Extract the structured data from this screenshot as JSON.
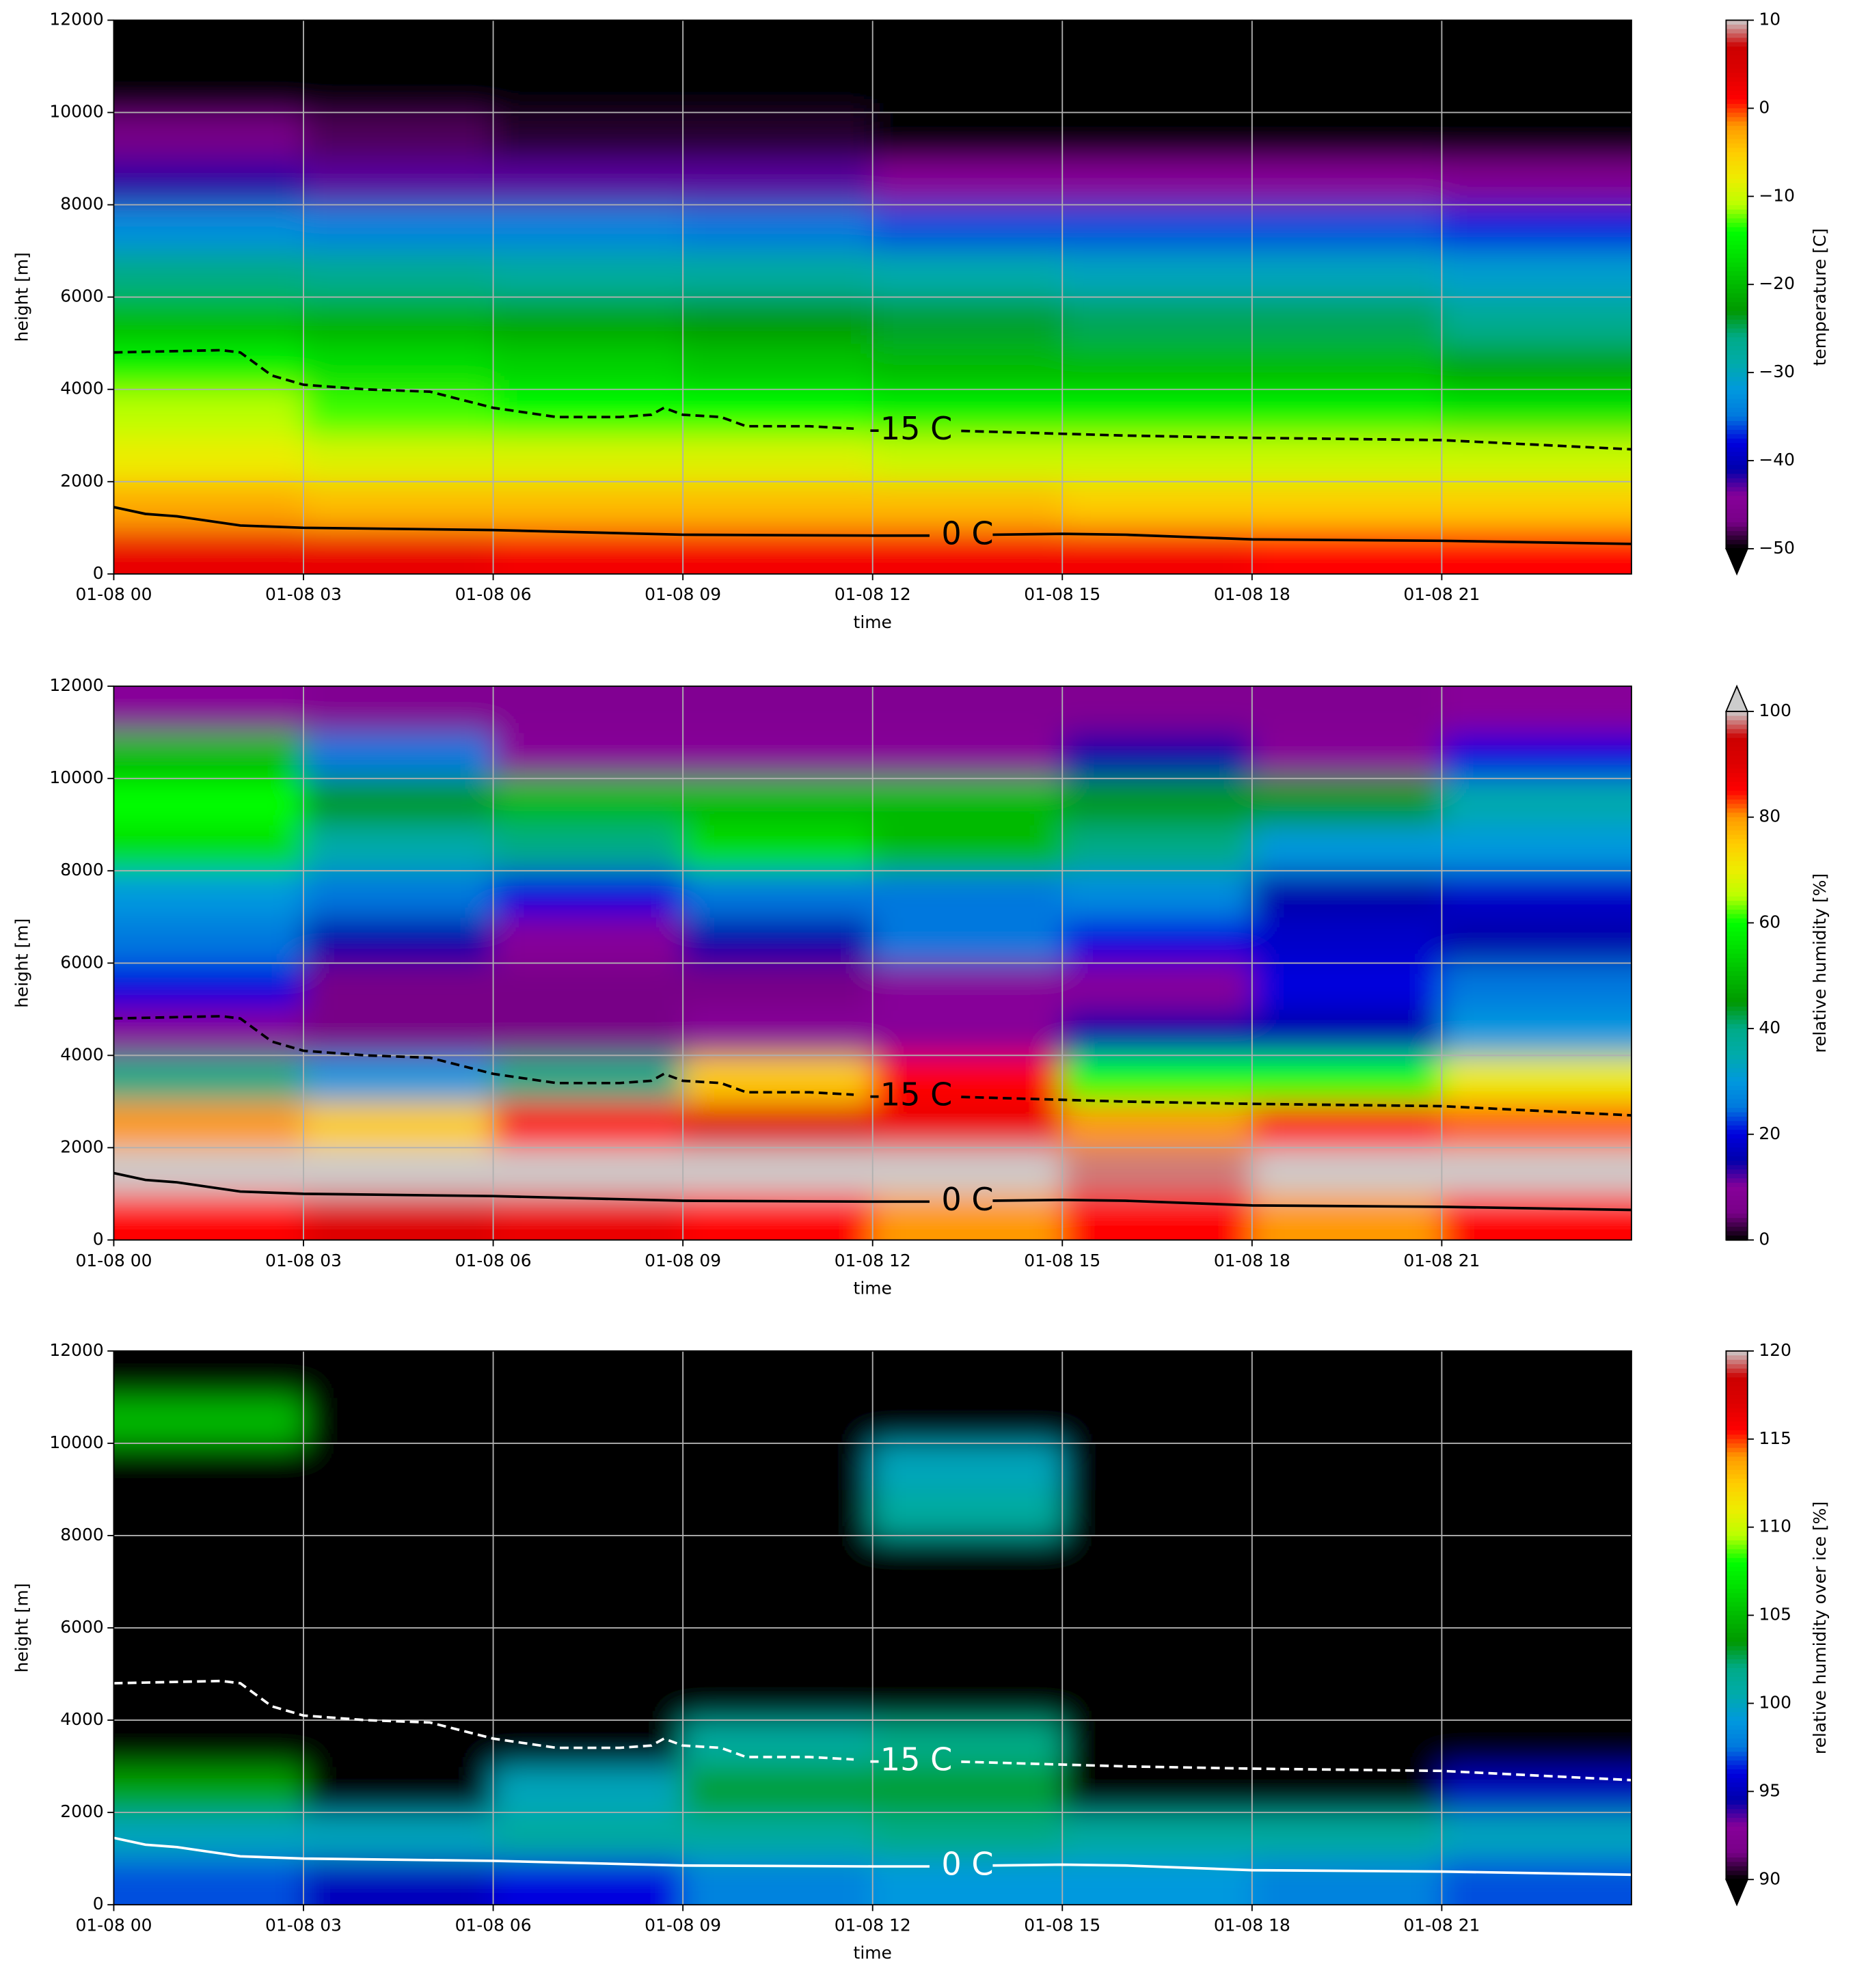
{
  "chart_data": [
    {
      "type": "heatmap",
      "xlabel": "time",
      "ylabel": "height [m]",
      "colorbar_label": "temperature [C]",
      "colormap": "nipy_spectral",
      "extend": "min",
      "contour_color": "#000000",
      "xlim": [
        0,
        24
      ],
      "xticks": [
        {
          "value": 0,
          "label": "01-08 00"
        },
        {
          "value": 3,
          "label": "01-08 03"
        },
        {
          "value": 6,
          "label": "01-08 06"
        },
        {
          "value": 9,
          "label": "01-08 09"
        },
        {
          "value": 12,
          "label": "01-08 12"
        },
        {
          "value": 15,
          "label": "01-08 15"
        },
        {
          "value": 18,
          "label": "01-08 18"
        },
        {
          "value": 21,
          "label": "01-08 21"
        }
      ],
      "ylim": [
        0,
        12000
      ],
      "yticks": [
        0,
        2000,
        4000,
        6000,
        8000,
        10000,
        12000
      ],
      "grid": true,
      "clim": [
        -50,
        10
      ],
      "cticks": [
        {
          "value": -50,
          "label": "−50"
        },
        {
          "value": -40,
          "label": "−40"
        },
        {
          "value": -30,
          "label": "−30"
        },
        {
          "value": -20,
          "label": "−20"
        },
        {
          "value": -10,
          "label": "−10"
        },
        0,
        10
      ],
      "z": [
        [
          3,
          3,
          2,
          2,
          2,
          2,
          1,
          1
        ],
        [
          -3,
          -4,
          -4,
          -4,
          -4,
          -5,
          -5,
          -5
        ],
        [
          -8,
          -9,
          -9,
          -9,
          -10,
          -10,
          -10,
          -10
        ],
        [
          -11,
          -13,
          -14,
          -14,
          -15,
          -15,
          -15,
          -16
        ],
        [
          -15,
          -17,
          -18,
          -19,
          -20,
          -20,
          -20,
          -22
        ],
        [
          -20,
          -21,
          -22,
          -23,
          -24,
          -25,
          -25,
          -27
        ],
        [
          -26,
          -27,
          -28,
          -28,
          -29,
          -30,
          -30,
          -31
        ],
        [
          -33,
          -34,
          -34,
          -35,
          -36,
          -36,
          -36,
          -37
        ],
        [
          -42,
          -43,
          -43,
          -43,
          -44,
          -44,
          -44,
          -45
        ],
        [
          -47,
          -48,
          -49,
          -49,
          -52,
          -52,
          -52,
          -53
        ],
        [
          -55,
          -55,
          -55,
          -55,
          -55,
          -55,
          -55,
          -55
        ],
        [
          -55,
          -55,
          -55,
          -55,
          -55,
          -55,
          -55,
          -55
        ]
      ],
      "contours": [
        {
          "label": "-15 C",
          "dashed": true,
          "label_x": 12.6,
          "label_y": 3100,
          "x": [
            0,
            1.7,
            2,
            2.5,
            3,
            4,
            5,
            6,
            7,
            8,
            8.5,
            8.7,
            9,
            9.6,
            10,
            11,
            11.7,
            12.6,
            13.4,
            16,
            18,
            21,
            24
          ],
          "y": [
            4800,
            4850,
            4800,
            4300,
            4100,
            4000,
            3950,
            3600,
            3400,
            3400,
            3450,
            3600,
            3450,
            3400,
            3200,
            3200,
            3150,
            null,
            3100,
            3000,
            2950,
            2900,
            2700
          ]
        },
        {
          "label": "0 C",
          "dashed": false,
          "label_x": 13.5,
          "label_y": 830,
          "x": [
            0,
            0.5,
            1,
            2,
            3,
            6,
            9,
            12,
            12.9,
            13.5,
            13.9,
            15,
            16,
            18,
            21,
            24
          ],
          "y": [
            1450,
            1300,
            1250,
            1050,
            1000,
            950,
            850,
            830,
            830,
            null,
            850,
            870,
            850,
            750,
            720,
            650
          ]
        }
      ]
    },
    {
      "type": "heatmap",
      "xlabel": "time",
      "ylabel": "height [m]",
      "colorbar_label": "relative humidity [%]",
      "colormap": "nipy_spectral",
      "extend": "max",
      "contour_color": "#000000",
      "xlim": [
        0,
        24
      ],
      "xticks": [
        {
          "value": 0,
          "label": "01-08 00"
        },
        {
          "value": 3,
          "label": "01-08 03"
        },
        {
          "value": 6,
          "label": "01-08 06"
        },
        {
          "value": 9,
          "label": "01-08 09"
        },
        {
          "value": 12,
          "label": "01-08 12"
        },
        {
          "value": 15,
          "label": "01-08 15"
        },
        {
          "value": 18,
          "label": "01-08 18"
        },
        {
          "value": 21,
          "label": "01-08 21"
        }
      ],
      "ylim": [
        0,
        12000
      ],
      "yticks": [
        0,
        2000,
        4000,
        6000,
        8000,
        10000,
        12000
      ],
      "grid": true,
      "clim": [
        0,
        100
      ],
      "cticks": [
        0,
        20,
        40,
        60,
        80,
        100
      ],
      "z": [
        [
          85,
          90,
          88,
          85,
          80,
          85,
          80,
          85
        ],
        [
          100,
          100,
          100,
          100,
          100,
          98,
          100,
          100
        ],
        [
          80,
          75,
          85,
          90,
          88,
          80,
          85,
          82
        ],
        [
          40,
          30,
          40,
          75,
          85,
          60,
          60,
          70
        ],
        [
          10,
          5,
          5,
          10,
          10,
          15,
          15,
          30
        ],
        [
          20,
          5,
          5,
          5,
          10,
          10,
          20,
          25
        ],
        [
          25,
          15,
          10,
          15,
          25,
          20,
          18,
          15
        ],
        [
          30,
          25,
          20,
          25,
          25,
          28,
          15,
          18
        ],
        [
          55,
          35,
          40,
          55,
          50,
          40,
          30,
          30
        ],
        [
          60,
          45,
          50,
          50,
          50,
          45,
          45,
          35
        ],
        [
          50,
          25,
          10,
          10,
          10,
          15,
          10,
          20
        ],
        [
          10,
          8,
          8,
          8,
          8,
          8,
          8,
          10
        ]
      ],
      "contours": [
        {
          "label": "-15 C",
          "dashed": true,
          "label_x": 12.6,
          "label_y": 3100,
          "x": [
            0,
            1.7,
            2,
            2.5,
            3,
            4,
            5,
            6,
            7,
            8,
            8.5,
            8.7,
            9,
            9.6,
            10,
            11,
            11.7,
            12.6,
            13.4,
            16,
            18,
            21,
            24
          ],
          "y": [
            4800,
            4850,
            4800,
            4300,
            4100,
            4000,
            3950,
            3600,
            3400,
            3400,
            3450,
            3600,
            3450,
            3400,
            3200,
            3200,
            3150,
            null,
            3100,
            3000,
            2950,
            2900,
            2700
          ]
        },
        {
          "label": "0 C",
          "dashed": false,
          "label_x": 13.5,
          "label_y": 830,
          "x": [
            0,
            0.5,
            1,
            2,
            3,
            6,
            9,
            12,
            12.9,
            13.5,
            13.9,
            15,
            16,
            18,
            21,
            24
          ],
          "y": [
            1450,
            1300,
            1250,
            1050,
            1000,
            950,
            850,
            830,
            830,
            null,
            850,
            870,
            850,
            750,
            720,
            650
          ]
        }
      ]
    },
    {
      "type": "heatmap",
      "xlabel": "time",
      "ylabel": "height [m]",
      "colorbar_label": "relative humidity over ice [%]",
      "colormap": "nipy_spectral",
      "extend": "min",
      "contour_color": "#ffffff",
      "xlim": [
        0,
        24
      ],
      "xticks": [
        {
          "value": 0,
          "label": "01-08 00"
        },
        {
          "value": 3,
          "label": "01-08 03"
        },
        {
          "value": 6,
          "label": "01-08 06"
        },
        {
          "value": 9,
          "label": "01-08 09"
        },
        {
          "value": 12,
          "label": "01-08 12"
        },
        {
          "value": 15,
          "label": "01-08 15"
        },
        {
          "value": 18,
          "label": "01-08 18"
        },
        {
          "value": 21,
          "label": "01-08 21"
        }
      ],
      "ylim": [
        0,
        12000
      ],
      "yticks": [
        0,
        2000,
        4000,
        6000,
        8000,
        10000,
        12000
      ],
      "grid": true,
      "clim": [
        90,
        120
      ],
      "cticks": [
        90,
        95,
        100,
        105,
        110,
        115,
        120
      ],
      "z": [
        [
          97,
          95,
          96,
          98,
          99,
          99,
          98,
          97
        ],
        [
          100,
          100,
          101,
          101,
          102,
          101,
          101,
          100
        ],
        [
          104,
          60,
          100,
          103,
          103,
          60,
          60,
          95
        ],
        [
          60,
          60,
          60,
          101,
          102,
          60,
          60,
          60
        ],
        [
          60,
          60,
          60,
          60,
          60,
          60,
          60,
          60
        ],
        [
          60,
          60,
          60,
          60,
          60,
          60,
          60,
          60
        ],
        [
          60,
          60,
          60,
          60,
          60,
          60,
          60,
          60
        ],
        [
          60,
          60,
          60,
          60,
          60,
          60,
          60,
          60
        ],
        [
          60,
          60,
          60,
          60,
          101,
          60,
          60,
          60
        ],
        [
          60,
          60,
          60,
          60,
          100,
          60,
          60,
          60
        ],
        [
          105,
          60,
          60,
          60,
          60,
          60,
          60,
          60
        ],
        [
          60,
          60,
          60,
          60,
          60,
          60,
          60,
          60
        ]
      ],
      "contours": [
        {
          "label": "-15 C",
          "dashed": true,
          "label_x": 12.6,
          "label_y": 3100,
          "x": [
            0,
            1.7,
            2,
            2.5,
            3,
            4,
            5,
            6,
            7,
            8,
            8.5,
            8.7,
            9,
            9.6,
            10,
            11,
            11.7,
            12.6,
            13.4,
            16,
            18,
            21,
            24
          ],
          "y": [
            4800,
            4850,
            4800,
            4300,
            4100,
            4000,
            3950,
            3600,
            3400,
            3400,
            3450,
            3600,
            3450,
            3400,
            3200,
            3200,
            3150,
            null,
            3100,
            3000,
            2950,
            2900,
            2700
          ]
        },
        {
          "label": "0 C",
          "dashed": false,
          "label_x": 13.5,
          "label_y": 830,
          "x": [
            0,
            0.5,
            1,
            2,
            3,
            6,
            9,
            12,
            12.9,
            13.5,
            13.9,
            15,
            16,
            18,
            21,
            24
          ],
          "y": [
            1450,
            1300,
            1250,
            1050,
            1000,
            950,
            850,
            830,
            830,
            null,
            850,
            870,
            850,
            750,
            720,
            650
          ]
        }
      ]
    }
  ]
}
